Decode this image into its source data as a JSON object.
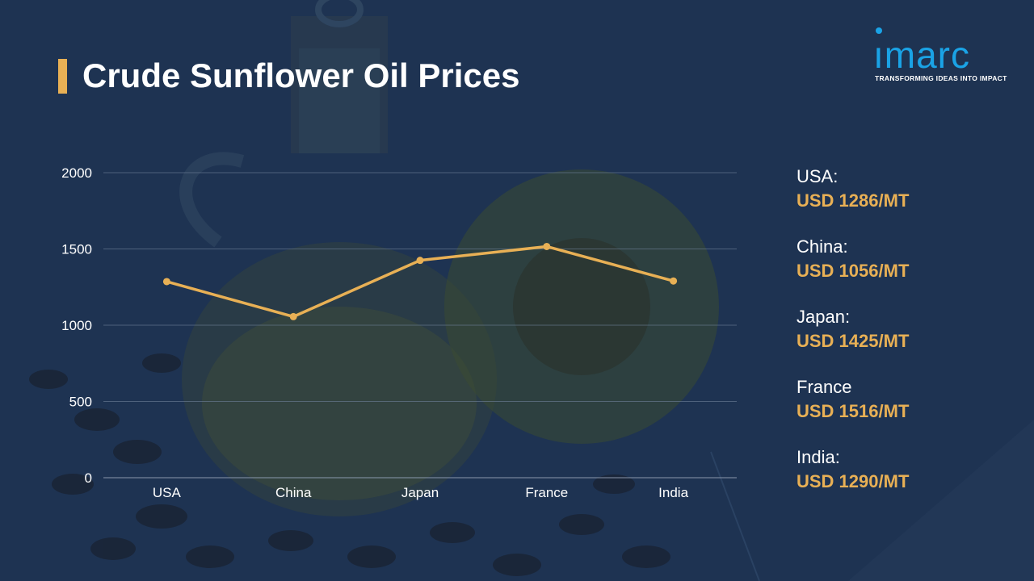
{
  "title": "Crude Sunflower Oil Prices",
  "logo": {
    "word": "ımarc",
    "tagline": "TRANSFORMING IDEAS INTO IMPACT"
  },
  "colors": {
    "background": "#1e3352",
    "accent": "#e8b055",
    "logo": "#1aa3e6",
    "gridline": "#6f8099",
    "text": "#ffffff"
  },
  "prices": [
    {
      "country": "USA:",
      "price": "USD 1286/MT"
    },
    {
      "country": "China:",
      "price": "USD 1056/MT"
    },
    {
      "country": "Japan:",
      "price": "USD 1425/MT"
    },
    {
      "country": "France",
      "price": "USD 1516/MT"
    },
    {
      "country": "India:",
      "price": "USD 1290/MT"
    }
  ],
  "chart_data": {
    "type": "line",
    "categories": [
      "USA",
      "China",
      "Japan",
      "France",
      "India"
    ],
    "series": [
      {
        "values": [
          1286,
          1056,
          1425,
          1516,
          1290
        ],
        "color": "#e8b055"
      }
    ],
    "ylim": [
      0,
      2000
    ],
    "yticks": [
      0,
      500,
      1000,
      1500,
      2000
    ],
    "grid": true,
    "legend": "none"
  }
}
